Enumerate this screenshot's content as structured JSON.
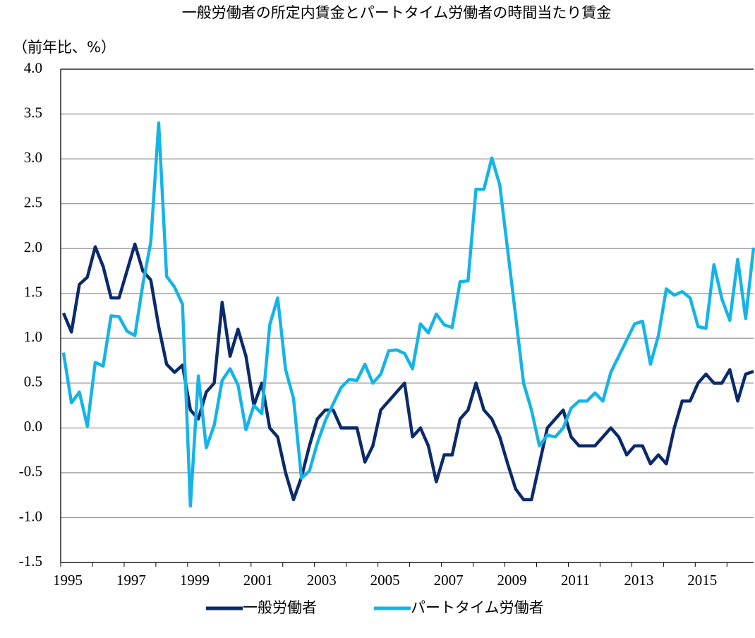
{
  "chart_data": {
    "type": "line",
    "title": "一般労働者の所定内賃金とパートタイム労働者の時間当たり賃金",
    "y_label": "（前年比、%）",
    "categories": [
      "1995",
      null,
      null,
      null,
      null,
      null,
      null,
      null,
      "1997",
      null,
      null,
      null,
      null,
      null,
      null,
      null,
      "1999",
      null,
      null,
      null,
      null,
      null,
      null,
      null,
      "2001",
      null,
      null,
      null,
      null,
      null,
      null,
      null,
      "2003",
      null,
      null,
      null,
      null,
      null,
      null,
      null,
      "2005",
      null,
      null,
      null,
      null,
      null,
      null,
      null,
      "2007",
      null,
      null,
      null,
      null,
      null,
      null,
      null,
      "2009",
      null,
      null,
      null,
      null,
      null,
      null,
      null,
      "2011",
      null,
      null,
      null,
      null,
      null,
      null,
      null,
      "2013",
      null,
      null,
      null,
      null,
      null,
      null,
      null,
      "2015",
      null,
      null,
      null,
      null,
      null,
      null,
      null
    ],
    "series": [
      {
        "name": "一般労働者",
        "color": "#0b2a6b",
        "values": [
          1.28,
          1.07,
          1.6,
          1.68,
          2.02,
          1.8,
          1.45,
          1.45,
          1.75,
          2.05,
          1.75,
          1.65,
          1.13,
          0.71,
          0.62,
          0.7,
          0.2,
          0.1,
          0.4,
          0.5,
          1.4,
          0.8,
          1.1,
          0.8,
          0.25,
          0.5,
          0.0,
          -0.1,
          -0.5,
          -0.8,
          -0.55,
          -0.2,
          0.1,
          0.2,
          0.2,
          0.0,
          0.0,
          0.0,
          -0.38,
          -0.2,
          0.2,
          0.3,
          0.4,
          0.5,
          -0.1,
          0.0,
          -0.2,
          -0.6,
          -0.3,
          -0.3,
          0.1,
          0.2,
          0.5,
          0.2,
          0.1,
          -0.1,
          -0.4,
          -0.68,
          -0.8,
          -0.8,
          -0.4,
          0.0,
          0.1,
          0.2,
          -0.1,
          -0.2,
          -0.2,
          -0.2,
          -0.1,
          0.0,
          -0.1,
          -0.3,
          -0.2,
          -0.2,
          -0.4,
          -0.3,
          -0.4,
          0.0,
          0.3,
          0.3,
          0.5,
          0.6,
          0.5,
          0.5,
          0.65,
          0.3,
          0.6,
          0.63
        ]
      },
      {
        "name": "パートタイム労働者",
        "color": "#14b4e8",
        "values": [
          0.84,
          0.28,
          0.4,
          0.02,
          0.73,
          0.69,
          1.25,
          1.24,
          1.08,
          1.03,
          1.6,
          2.07,
          3.4,
          1.69,
          1.57,
          1.38,
          -0.87,
          0.58,
          -0.22,
          0.03,
          0.53,
          0.66,
          0.48,
          -0.02,
          0.25,
          0.16,
          1.15,
          1.45,
          0.65,
          0.33,
          -0.56,
          -0.48,
          -0.17,
          0.08,
          0.27,
          0.45,
          0.54,
          0.53,
          0.71,
          0.5,
          0.6,
          0.86,
          0.87,
          0.83,
          0.66,
          1.16,
          1.06,
          1.27,
          1.15,
          1.12,
          1.63,
          1.64,
          2.66,
          2.66,
          3.01,
          2.71,
          1.98,
          1.25,
          0.5,
          0.2,
          -0.2,
          -0.08,
          -0.1,
          0.0,
          0.22,
          0.3,
          0.3,
          0.39,
          0.3,
          0.62,
          0.8,
          0.98,
          1.16,
          1.19,
          0.71,
          1.03,
          1.55,
          1.48,
          1.52,
          1.45,
          1.13,
          1.11,
          1.82,
          1.44,
          1.2,
          1.88,
          1.22,
          2.01
        ]
      }
    ],
    "ylim": [
      -1.5,
      4.0
    ],
    "yticks": [
      {
        "value": -1.5,
        "label": "-1.5"
      },
      {
        "value": -1,
        "label": "-1.0"
      },
      {
        "value": -0.5,
        "label": "-0.5"
      },
      {
        "value": 0,
        "label": "0.0"
      },
      {
        "value": 0.5,
        "label": "0.5"
      },
      {
        "value": 1,
        "label": "1.0"
      },
      {
        "value": 1.5,
        "label": "1.5"
      },
      {
        "value": 2,
        "label": "2.0"
      },
      {
        "value": 2.5,
        "label": "2.5"
      },
      {
        "value": 3,
        "label": "3.0"
      },
      {
        "value": 3.5,
        "label": "3.5"
      },
      {
        "value": 4,
        "label": "4.0"
      }
    ],
    "grid": true,
    "legend": "bottom"
  }
}
